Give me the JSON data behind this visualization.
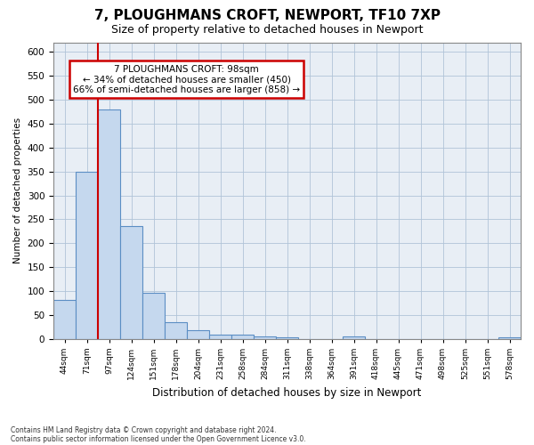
{
  "title1": "7, PLOUGHMANS CROFT, NEWPORT, TF10 7XP",
  "title2": "Size of property relative to detached houses in Newport",
  "xlabel": "Distribution of detached houses by size in Newport",
  "ylabel": "Number of detached properties",
  "categories": [
    "44sqm",
    "71sqm",
    "97sqm",
    "124sqm",
    "151sqm",
    "178sqm",
    "204sqm",
    "231sqm",
    "258sqm",
    "284sqm",
    "311sqm",
    "338sqm",
    "364sqm",
    "391sqm",
    "418sqm",
    "445sqm",
    "471sqm",
    "498sqm",
    "525sqm",
    "551sqm",
    "578sqm"
  ],
  "values": [
    82,
    350,
    480,
    235,
    97,
    35,
    18,
    8,
    8,
    5,
    3,
    0,
    0,
    5,
    0,
    0,
    0,
    0,
    0,
    0,
    4
  ],
  "bar_color": "#c5d8ee",
  "bar_edge_color": "#5b8ec4",
  "vline_color": "#cc0000",
  "vline_x_index": 2,
  "annotation_text": "7 PLOUGHMANS CROFT: 98sqm\n← 34% of detached houses are smaller (450)\n66% of semi-detached houses are larger (858) →",
  "annotation_box_color": "white",
  "annotation_box_edge": "#cc0000",
  "ylim": [
    0,
    620
  ],
  "yticks": [
    0,
    50,
    100,
    150,
    200,
    250,
    300,
    350,
    400,
    450,
    500,
    550,
    600
  ],
  "footer1": "Contains HM Land Registry data © Crown copyright and database right 2024.",
  "footer2": "Contains public sector information licensed under the Open Government Licence v3.0.",
  "bg_color": "#ffffff",
  "plot_bg_color": "#e8eef5",
  "grid_color": "#b0c4d8",
  "title1_fontsize": 11,
  "title2_fontsize": 9
}
